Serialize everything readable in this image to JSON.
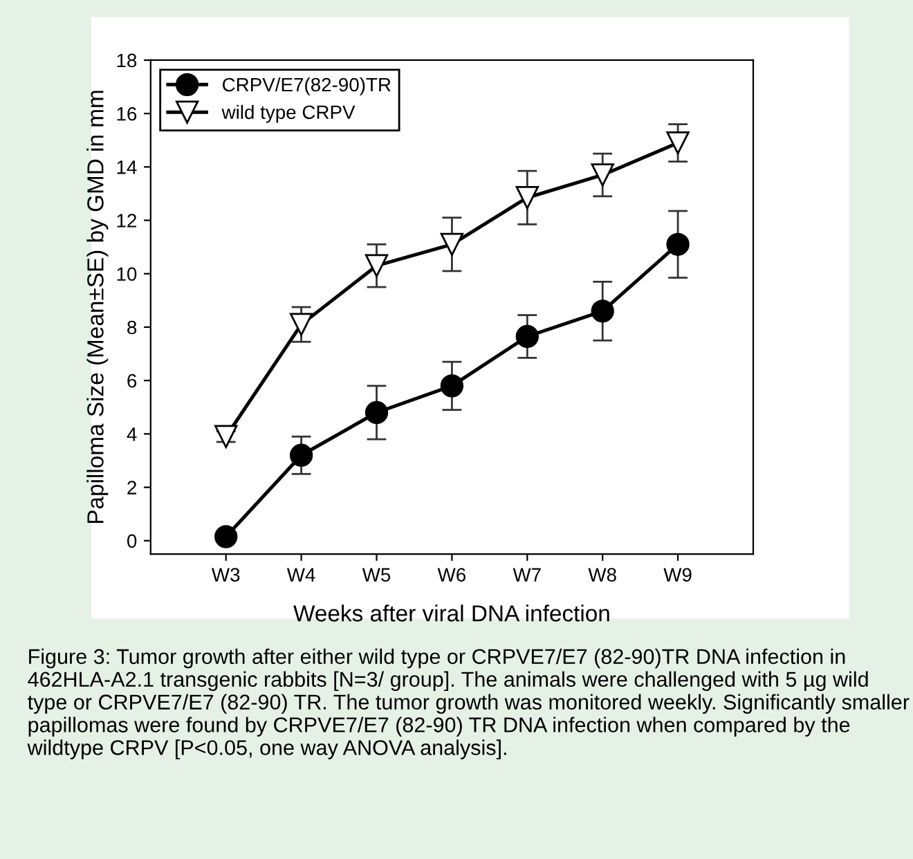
{
  "chart_data": {
    "type": "line",
    "xlabel": "Weeks after viral DNA infection",
    "ylabel": "Papilloma Size (Mean±SE) by GMD in mm",
    "categories": [
      "W3",
      "W4",
      "W5",
      "W6",
      "W7",
      "W8",
      "W9"
    ],
    "series": [
      {
        "name": "CRPV/E7(82-90)TR",
        "color": "#000000",
        "marker": "circle",
        "values": [
          0.15,
          3.2,
          4.8,
          5.8,
          7.65,
          8.6,
          11.1
        ],
        "errors": [
          null,
          0.7,
          1.0,
          0.9,
          0.8,
          1.1,
          1.25
        ]
      },
      {
        "name": "wild type CRPV",
        "color": "#000000",
        "marker": "triangle",
        "values": [
          3.9,
          8.1,
          10.3,
          11.1,
          12.85,
          13.7,
          14.9
        ],
        "errors": [
          0.2,
          0.65,
          0.8,
          1.0,
          1.0,
          0.8,
          0.7
        ]
      }
    ],
    "ylim": [
      -0.5,
      18
    ],
    "yticks": [
      0,
      2,
      4,
      6,
      8,
      10,
      12,
      14,
      16,
      18
    ],
    "grid": false,
    "legend": "top left",
    "line_style": "solid",
    "annotations": [
      "Figure 3: Tumor growth after either wild type or CRPVE7/E7 (82-90)TR DNA infection in 462HLA-A2.1 transgenic rabbits [N=3/ group]. The animals were challenged with 5 µg wild type or CRPVE7/E7 (82-90) TR. The tumor growth was monitored weekly. Significantly smaller papillomas were found by CRPVE7/E7 (82-90) TR DNA infection when compared by the wildtype CRPV [P<0.05, one way ANOVA analysis]."
    ]
  }
}
